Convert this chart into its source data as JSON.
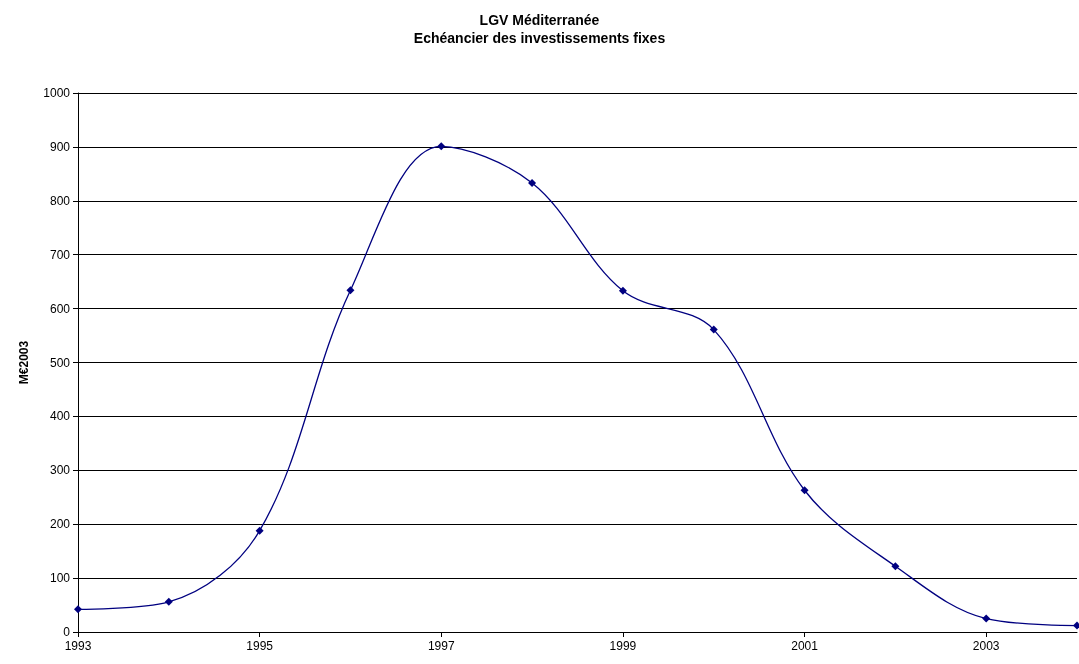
{
  "chart_data": {
    "type": "line",
    "title": "LGV Méditerranée",
    "subtitle": "Echéancier des investissements fixes",
    "ylabel": "M€2003",
    "x": [
      1993,
      1994,
      1995,
      1996,
      1997,
      1998,
      1999,
      2000,
      2001,
      2002,
      2003,
      2004
    ],
    "series": [
      {
        "color": "#000080",
        "values": [
          42,
          56,
          188,
          634,
          901,
          833,
          633,
          561,
          263,
          122,
          25,
          12
        ]
      }
    ],
    "xlim": [
      1993,
      2004
    ],
    "xticks": [
      1993,
      1995,
      1997,
      1999,
      2001,
      2003
    ],
    "ylim": [
      0,
      1000
    ],
    "yticks": [
      0,
      100,
      200,
      300,
      400,
      500,
      600,
      700,
      800,
      900,
      1000
    ],
    "grid": "y",
    "marker": "diamond",
    "line_style": "solid"
  }
}
